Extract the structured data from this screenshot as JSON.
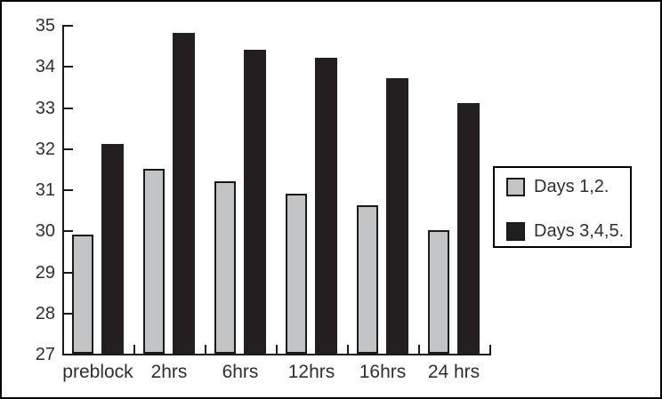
{
  "chart_data": {
    "type": "bar",
    "title": "",
    "xlabel": "",
    "ylabel": "",
    "categories": [
      "preblock",
      "2hrs",
      "6hrs",
      "12hrs",
      "16hrs",
      "24 hrs"
    ],
    "series": [
      {
        "name": "Days 1,2.",
        "color": "#c2c4c6",
        "outlined": true,
        "values": [
          29.9,
          31.5,
          31.2,
          30.9,
          30.6,
          30.0
        ]
      },
      {
        "name": "Days 3,4,5.",
        "color": "#231f20",
        "outlined": false,
        "values": [
          32.1,
          34.8,
          34.4,
          34.2,
          33.7,
          33.1
        ]
      }
    ],
    "ylim": [
      27,
      35
    ],
    "ytick_step": 1,
    "yticks": [
      27,
      28,
      29,
      30,
      31,
      32,
      33,
      34,
      35
    ],
    "grid": false,
    "legend_position": "right",
    "axis_color": "#1a1a1a",
    "frame_color": "#000000"
  }
}
